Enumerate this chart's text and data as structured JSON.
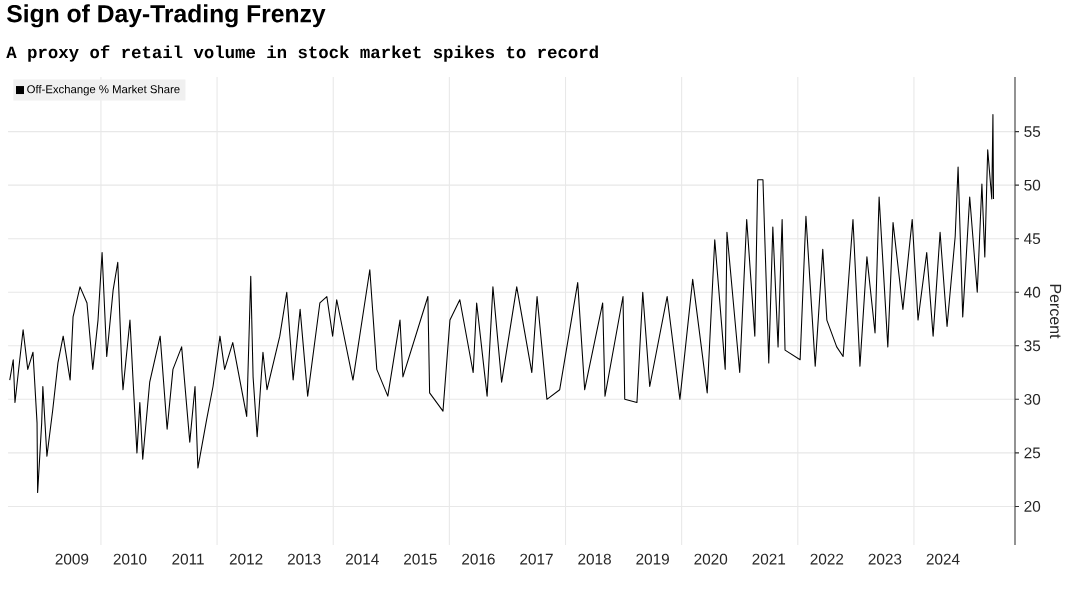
{
  "chart_data": {
    "type": "line",
    "title": "Sign of Day-Trading Frenzy",
    "subtitle": "A proxy of retail volume in stock market spikes to record",
    "ylabel": "Percent",
    "x": [
      2008.43,
      2008.49,
      2008.52,
      2008.66,
      2008.74,
      2008.83,
      2008.9,
      2008.91,
      2008.98,
      2009.0,
      2009.07,
      2009.17,
      2009.26,
      2009.35,
      2009.47,
      2009.52,
      2009.64,
      2009.76,
      2009.86,
      2009.95,
      2010.02,
      2010.1,
      2010.21,
      2010.29,
      2010.36,
      2010.38,
      2010.5,
      2010.55,
      2010.62,
      2010.67,
      2010.72,
      2010.84,
      2011.02,
      2011.14,
      2011.24,
      2011.39,
      2011.53,
      2011.62,
      2011.67,
      2011.82,
      2011.93,
      2012.05,
      2012.13,
      2012.27,
      2012.51,
      2012.58,
      2012.62,
      2012.69,
      2012.79,
      2012.86,
      2013.08,
      2013.2,
      2013.31,
      2013.43,
      2013.56,
      2013.77,
      2013.89,
      2013.99,
      2014.06,
      2014.34,
      2014.63,
      2014.75,
      2014.94,
      2015.15,
      2015.2,
      2015.63,
      2015.66,
      2015.89,
      2016.01,
      2016.18,
      2016.41,
      2016.47,
      2016.65,
      2016.75,
      2016.9,
      2017.16,
      2017.42,
      2017.51,
      2017.68,
      2017.9,
      2018.21,
      2018.33,
      2018.64,
      2018.68,
      2018.99,
      2019.02,
      2019.23,
      2019.33,
      2019.45,
      2019.75,
      2019.97,
      2020.19,
      2020.44,
      2020.57,
      2020.75,
      2020.78,
      2021.0,
      2021.12,
      2021.26,
      2021.31,
      2021.4,
      2021.5,
      2021.57,
      2021.66,
      2021.73,
      2021.78,
      2022.04,
      2022.14,
      2022.3,
      2022.43,
      2022.5,
      2022.67,
      2022.78,
      2022.95,
      2023.07,
      2023.19,
      2023.33,
      2023.4,
      2023.55,
      2023.64,
      2023.81,
      2023.97,
      2024.07,
      2024.22,
      2024.33,
      2024.45,
      2024.57,
      2024.71,
      2024.76,
      2024.84,
      2024.96,
      2025.09,
      2025.17,
      2025.22,
      2025.27,
      2025.34,
      2025.36,
      2025.37
    ],
    "series": [
      {
        "name": "Off-Exchange % Market Share",
        "color": "#000000",
        "values": [
          31.8,
          33.7,
          29.7,
          36.5,
          32.8,
          34.4,
          27.8,
          21.3,
          27.8,
          31.2,
          24.7,
          29.0,
          33.4,
          35.9,
          31.8,
          37.7,
          40.5,
          39.0,
          32.8,
          37.4,
          43.7,
          34.0,
          40.2,
          42.8,
          32.8,
          30.9,
          37.4,
          32.1,
          25.0,
          29.7,
          24.4,
          31.6,
          35.9,
          27.2,
          32.8,
          34.9,
          26.0,
          31.2,
          23.6,
          28.1,
          31.2,
          35.9,
          32.8,
          35.3,
          28.4,
          41.5,
          32.1,
          26.5,
          34.4,
          30.9,
          35.9,
          40.0,
          31.8,
          38.4,
          30.3,
          39.0,
          39.6,
          35.9,
          39.3,
          31.8,
          42.1,
          32.8,
          30.3,
          37.4,
          32.1,
          39.6,
          30.6,
          28.9,
          37.4,
          39.3,
          32.5,
          39.0,
          30.3,
          40.5,
          31.6,
          40.5,
          32.5,
          39.6,
          30.0,
          30.9,
          40.9,
          30.9,
          39.0,
          30.3,
          39.6,
          30.0,
          29.7,
          40.0,
          31.2,
          39.6,
          30.0,
          41.2,
          30.6,
          44.9,
          32.8,
          45.6,
          32.5,
          46.8,
          35.9,
          50.5,
          50.5,
          33.4,
          46.1,
          34.9,
          46.8,
          34.6,
          33.7,
          47.1,
          33.1,
          44.0,
          37.4,
          34.9,
          34.0,
          46.8,
          33.1,
          43.3,
          36.2,
          48.9,
          34.9,
          46.5,
          38.4,
          46.8,
          37.4,
          43.7,
          35.9,
          45.6,
          36.8,
          45.2,
          51.7,
          37.7,
          48.9,
          40.0,
          50.1,
          43.3,
          53.3,
          48.7,
          56.6,
          48.7
        ]
      }
    ],
    "xlim": [
      2008.4,
      2025.74
    ],
    "ylim": [
      16.4,
      60.1
    ],
    "xticks": [
      {
        "value": 2009.5,
        "label": "2009"
      },
      {
        "value": 2010.5,
        "label": "2010"
      },
      {
        "value": 2011.5,
        "label": "2011"
      },
      {
        "value": 2012.5,
        "label": "2012"
      },
      {
        "value": 2013.5,
        "label": "2013"
      },
      {
        "value": 2014.5,
        "label": "2014"
      },
      {
        "value": 2015.5,
        "label": "2015"
      },
      {
        "value": 2016.5,
        "label": "2016"
      },
      {
        "value": 2017.5,
        "label": "2017"
      },
      {
        "value": 2018.5,
        "label": "2018"
      },
      {
        "value": 2019.5,
        "label": "2019"
      },
      {
        "value": 2020.5,
        "label": "2020"
      },
      {
        "value": 2021.5,
        "label": "2021"
      },
      {
        "value": 2022.5,
        "label": "2022"
      },
      {
        "value": 2023.5,
        "label": "2023"
      },
      {
        "value": 2024.5,
        "label": "2024"
      },
      {
        "value": 2010,
        "label": null
      },
      {
        "value": 2012,
        "label": null
      },
      {
        "value": 2014,
        "label": null
      },
      {
        "value": 2016,
        "label": null
      },
      {
        "value": 2018,
        "label": null
      },
      {
        "value": 2020,
        "label": null
      },
      {
        "value": 2022,
        "label": null
      },
      {
        "value": 2024,
        "label": null
      }
    ],
    "yticks": [
      20,
      25,
      30,
      35,
      40,
      45,
      50,
      55
    ],
    "grid": true,
    "legend": "top left",
    "marker": "none",
    "line_style": "solid"
  }
}
